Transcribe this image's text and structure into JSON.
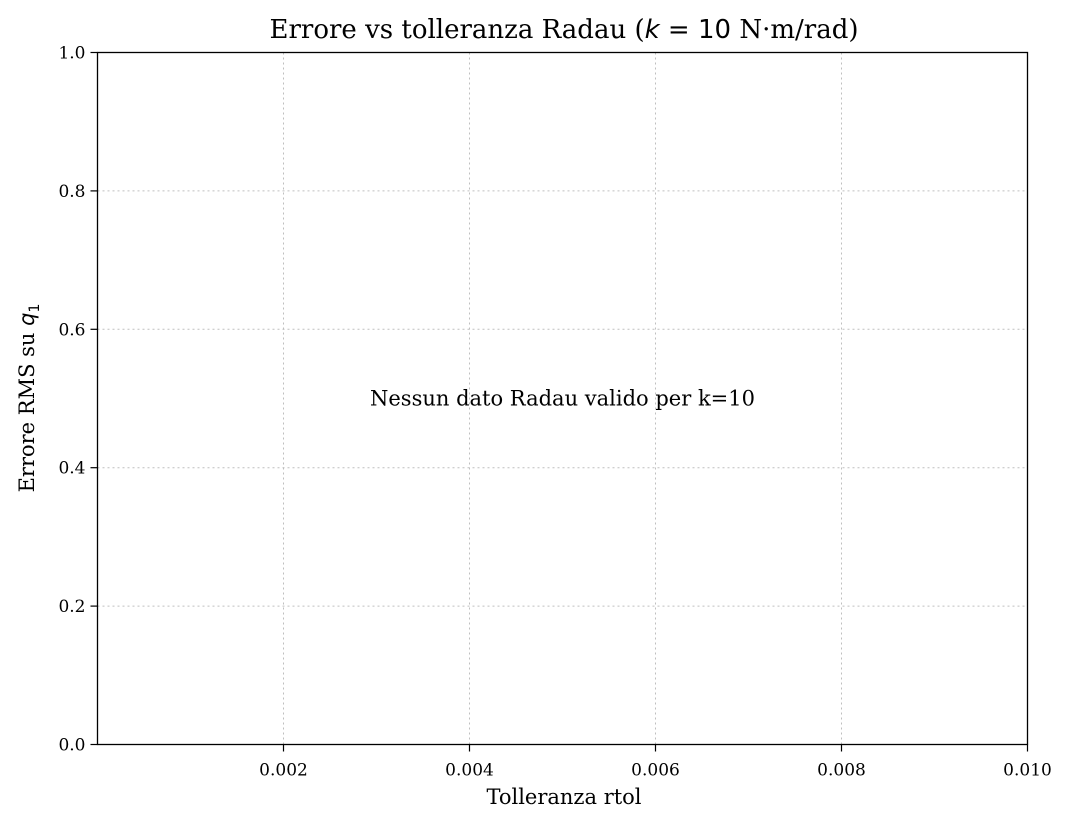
{
  "chart_data": {
    "type": "line",
    "title": {
      "prefix": "Errore vs tolleranza Radau (",
      "math_var": "k",
      "math_op": " = 10",
      "suffix": " N·m/rad)"
    },
    "xlabel": "Tolleranza rtol",
    "ylabel": {
      "prefix": "Errore RMS su ",
      "math_var": "q",
      "math_sub": "1"
    },
    "xlim": [
      0,
      0.01
    ],
    "ylim": [
      0,
      1
    ],
    "x_ticks": [
      0.002,
      0.004,
      0.006,
      0.008,
      0.01
    ],
    "x_tick_labels": [
      "0.002",
      "0.004",
      "0.006",
      "0.008",
      "0.010"
    ],
    "y_ticks": [
      0,
      0.2,
      0.4,
      0.6,
      0.8,
      1
    ],
    "y_tick_labels": [
      "0.0",
      "0.2",
      "0.4",
      "0.6",
      "0.8",
      "1.0"
    ],
    "grid": true,
    "series": [],
    "annotation": {
      "text": "Nessun dato Radau valido per k=10",
      "x": 0.005,
      "y": 0.5
    }
  }
}
